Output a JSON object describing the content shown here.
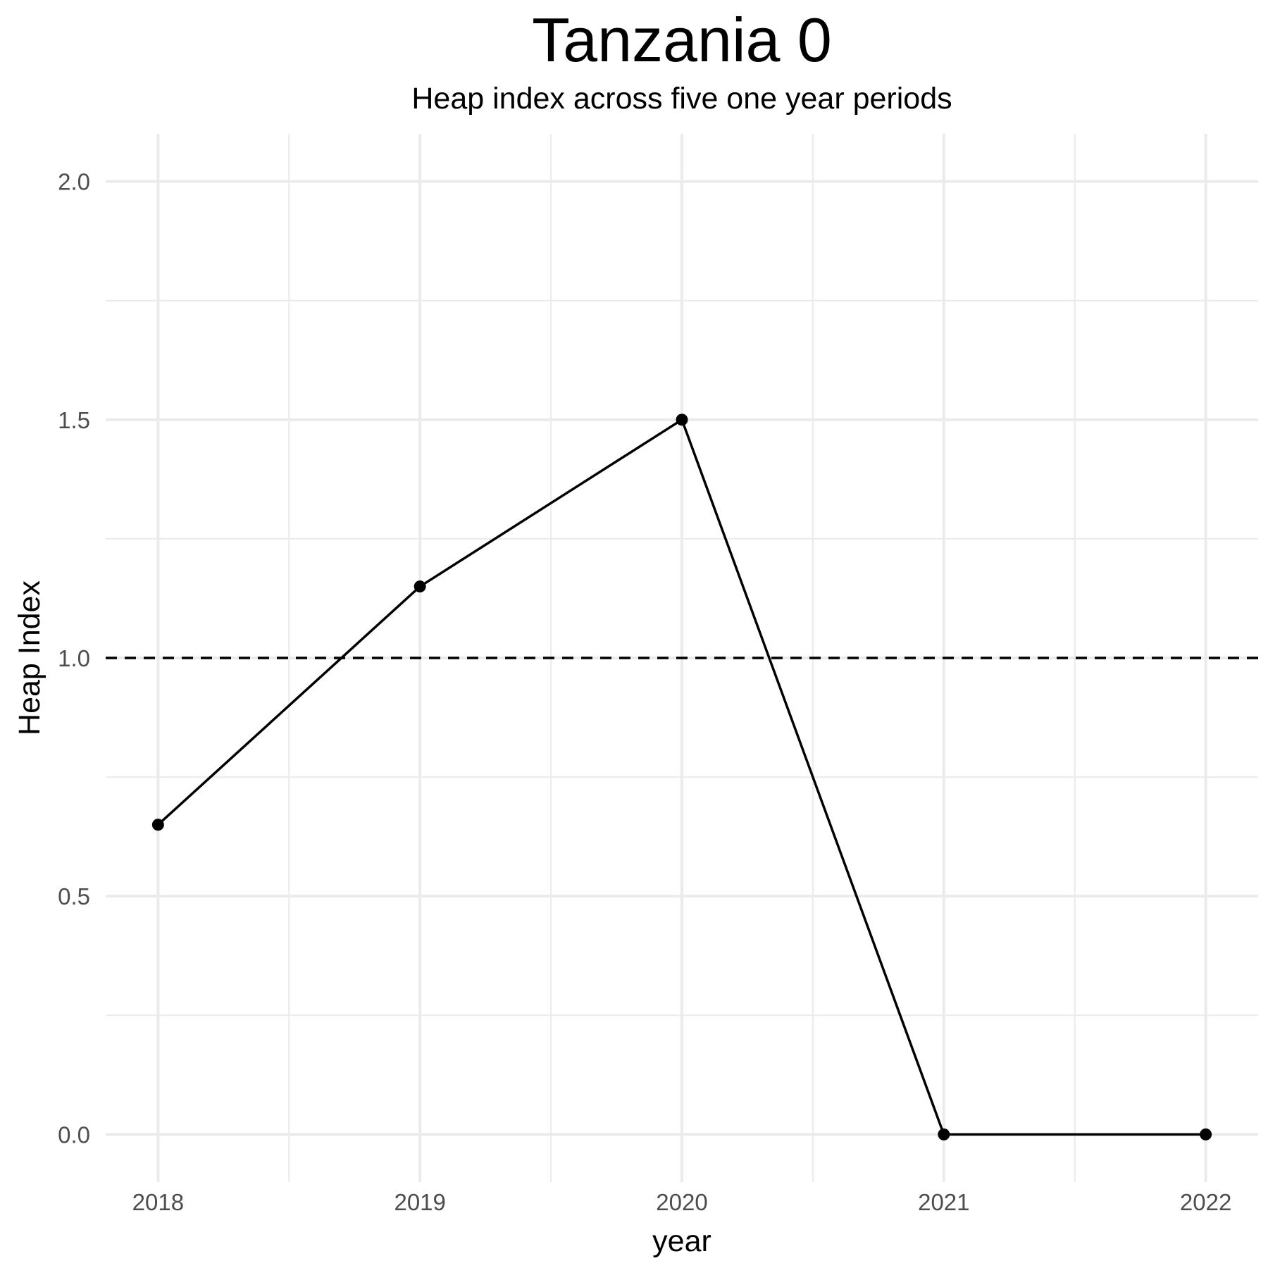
{
  "chart_data": {
    "type": "line",
    "title": "Tanzania 0",
    "subtitle": "Heap index across five one year periods",
    "xlabel": "year",
    "ylabel": "Heap Index",
    "x": [
      2018,
      2019,
      2020,
      2021,
      2022
    ],
    "series": [
      {
        "values": [
          0.65,
          1.15,
          1.5,
          0.0,
          0.0
        ]
      }
    ],
    "reference_line": {
      "y": 1.0,
      "style": "dashed"
    },
    "xlim": [
      2017.8,
      2022.2
    ],
    "ylim": [
      -0.1,
      2.1
    ],
    "x_ticks": [
      "2018",
      "2019",
      "2020",
      "2021",
      "2022"
    ],
    "y_ticks": [
      "0.0",
      "0.5",
      "1.0",
      "1.5",
      "2.0"
    ],
    "grid": true,
    "colors": {
      "line": "#000000",
      "grid": "#ebebeb",
      "tick_text": "#4d4d4d"
    }
  }
}
